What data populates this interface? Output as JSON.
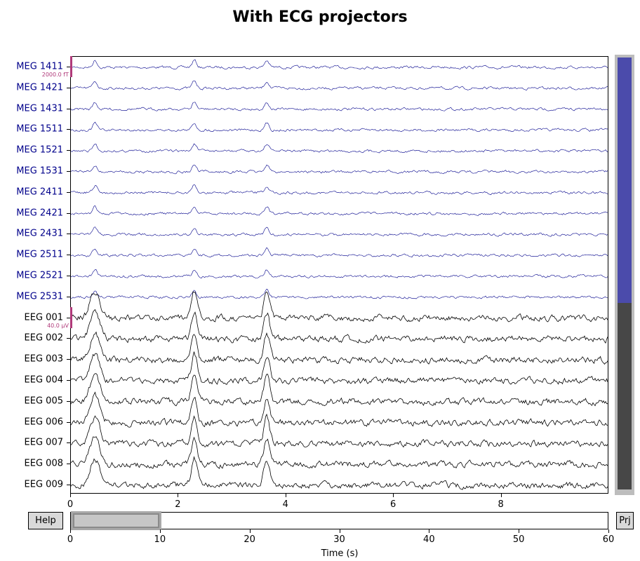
{
  "title": "With ECG projectors",
  "colors": {
    "meg": "#00008b",
    "eeg": "#000000",
    "scale_bar": "#b03a7a",
    "vscroll_meg": "#4b4bab",
    "vscroll_eeg": "#474747",
    "vscroll_bg": "#bdbdbd"
  },
  "channels": [
    {
      "name": "MEG 1411",
      "type": "meg"
    },
    {
      "name": "MEG 1421",
      "type": "meg"
    },
    {
      "name": "MEG 1431",
      "type": "meg"
    },
    {
      "name": "MEG 1511",
      "type": "meg"
    },
    {
      "name": "MEG 1521",
      "type": "meg"
    },
    {
      "name": "MEG 1531",
      "type": "meg"
    },
    {
      "name": "MEG 2411",
      "type": "meg"
    },
    {
      "name": "MEG 2421",
      "type": "meg"
    },
    {
      "name": "MEG 2431",
      "type": "meg"
    },
    {
      "name": "MEG 2511",
      "type": "meg"
    },
    {
      "name": "MEG 2521",
      "type": "meg"
    },
    {
      "name": "MEG 2531",
      "type": "meg"
    },
    {
      "name": "EEG 001",
      "type": "eeg"
    },
    {
      "name": "EEG 002",
      "type": "eeg"
    },
    {
      "name": "EEG 003",
      "type": "eeg"
    },
    {
      "name": "EEG 004",
      "type": "eeg"
    },
    {
      "name": "EEG 005",
      "type": "eeg"
    },
    {
      "name": "EEG 006",
      "type": "eeg"
    },
    {
      "name": "EEG 007",
      "type": "eeg"
    },
    {
      "name": "EEG 008",
      "type": "eeg"
    },
    {
      "name": "EEG 009",
      "type": "eeg"
    }
  ],
  "scale_bars": {
    "meg": {
      "label": "2000.0 fT",
      "channel_index": 0
    },
    "eeg": {
      "label": "40.0 µV",
      "channel_index": 12
    }
  },
  "time_axis": {
    "ticks": [
      "0",
      "2",
      "4",
      "6",
      "8"
    ],
    "tick_values": [
      0,
      2,
      4,
      6,
      8
    ],
    "range": [
      0,
      10
    ],
    "peaks_s": [
      0.45,
      2.3,
      3.65
    ]
  },
  "overview": {
    "ticks": [
      "0",
      "10",
      "20",
      "30",
      "40",
      "50",
      "60"
    ],
    "tick_values": [
      0,
      10,
      20,
      30,
      40,
      50,
      60
    ],
    "range": [
      0,
      60
    ],
    "window": [
      0,
      10
    ],
    "xlabel": "Time (s)"
  },
  "buttons": {
    "help": "Help",
    "proj": "Prj"
  }
}
